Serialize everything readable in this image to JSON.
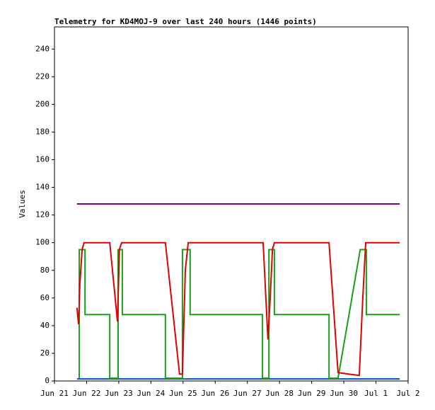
{
  "chart_data": {
    "type": "line",
    "title": "Telemetry for KD4MOJ-9 over last 240 hours (1446 points)",
    "y_label": "Values",
    "xlim": [
      0,
      11
    ],
    "ylim": [
      0,
      256
    ],
    "xticks": [
      {
        "value": 0,
        "label": "Jun 21"
      },
      {
        "value": 1,
        "label": "Jun 22"
      },
      {
        "value": 2,
        "label": "Jun 23"
      },
      {
        "value": 3,
        "label": "Jun 24"
      },
      {
        "value": 4,
        "label": "Jun 25"
      },
      {
        "value": 5,
        "label": "Jun 26"
      },
      {
        "value": 6,
        "label": "Jun 27"
      },
      {
        "value": 7,
        "label": "Jun 28"
      },
      {
        "value": 8,
        "label": "Jun 29"
      },
      {
        "value": 9,
        "label": "Jun 30"
      },
      {
        "value": 10,
        "label": "Jul 1"
      },
      {
        "value": 11,
        "label": "Jul 2"
      }
    ],
    "yticks": [
      0,
      20,
      40,
      60,
      80,
      100,
      120,
      140,
      160,
      180,
      200,
      220,
      240
    ],
    "series": [
      {
        "color": "#800080",
        "x": [
          0.7,
          10.74
        ],
        "values": [
          128,
          128
        ]
      },
      {
        "color": "#0050c8",
        "x": [
          0.7,
          10.74
        ],
        "values": [
          1.5,
          1.5
        ]
      },
      {
        "color": "#18a018",
        "x": [
          0.77,
          0.77,
          0.95,
          0.95,
          1.72,
          1.72,
          1.98,
          1.98,
          2.11,
          2.11,
          3.45,
          3.45,
          3.98,
          3.98,
          4.22,
          4.22,
          6.47,
          6.47,
          6.67,
          6.67,
          6.84,
          6.84,
          8.54,
          8.54,
          8.82,
          9.51,
          9.7,
          9.7,
          10.74
        ],
        "values": [
          2,
          95,
          95,
          48,
          48,
          2,
          2,
          95,
          95,
          48,
          48,
          2,
          2,
          95,
          95,
          48,
          48,
          2,
          2,
          95,
          95,
          48,
          48,
          2,
          2,
          95,
          95,
          48,
          48
        ]
      },
      {
        "color": "#e00000",
        "x": [
          0.7,
          0.75,
          0.79,
          0.86,
          0.92,
          1.72,
          1.96,
          2.02,
          2.09,
          3.45,
          3.89,
          3.98,
          4.07,
          4.16,
          6.49,
          6.64,
          6.71,
          6.78,
          6.84,
          8.54,
          8.82,
          9.48,
          9.59,
          9.68,
          10.74
        ],
        "values": [
          53,
          41,
          70,
          95,
          100,
          100,
          43,
          95,
          100,
          100,
          5,
          5,
          80,
          100,
          100,
          30,
          60,
          95,
          100,
          100,
          6,
          4,
          60,
          100,
          100
        ]
      }
    ]
  }
}
